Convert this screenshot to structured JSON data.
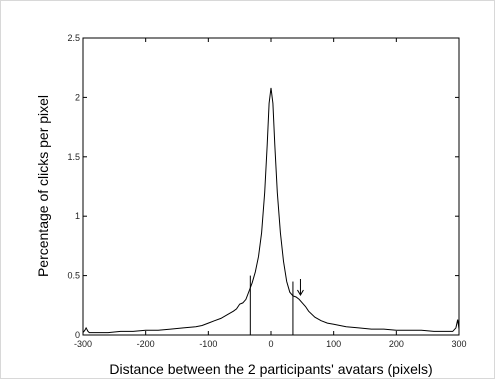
{
  "chart_data": {
    "type": "line",
    "title": "",
    "xlabel": "Distance between the 2 participants' avatars (pixels)",
    "ylabel": "Percentage of clicks per pixel",
    "xlim": [
      -300,
      300
    ],
    "ylim": [
      0,
      2.5
    ],
    "x_ticks": [
      -300,
      -200,
      -100,
      0,
      100,
      200,
      300
    ],
    "x_tick_labels": [
      "-300",
      "-200",
      "-100",
      "0",
      "100",
      "200",
      "300"
    ],
    "y_ticks": [
      0,
      0.5,
      1,
      1.5,
      2,
      2.5
    ],
    "y_tick_labels": [
      "0",
      "0.5",
      "1",
      "1.5",
      "2",
      "2.5"
    ],
    "grid": false,
    "series": [
      {
        "x": [
          -300,
          -297,
          -295,
          -292,
          -290,
          -280,
          -260,
          -240,
          -220,
          -200,
          -180,
          -160,
          -140,
          -120,
          -110,
          -100,
          -90,
          -80,
          -70,
          -60,
          -55,
          -50,
          -45,
          -40,
          -35,
          -30,
          -25,
          -20,
          -15,
          -10,
          -6,
          -3,
          0,
          3,
          6,
          10,
          15,
          20,
          25,
          30,
          35,
          40,
          45,
          50,
          55,
          60,
          70,
          80,
          90,
          100,
          110,
          120,
          140,
          160,
          180,
          200,
          220,
          240,
          260,
          280,
          290,
          295,
          298,
          300
        ],
        "y": [
          0.02,
          0.04,
          0.06,
          0.03,
          0.02,
          0.02,
          0.02,
          0.03,
          0.03,
          0.04,
          0.04,
          0.05,
          0.06,
          0.07,
          0.08,
          0.1,
          0.12,
          0.14,
          0.17,
          0.2,
          0.22,
          0.26,
          0.27,
          0.3,
          0.37,
          0.44,
          0.53,
          0.66,
          0.86,
          1.2,
          1.6,
          1.95,
          2.08,
          1.95,
          1.6,
          1.2,
          0.86,
          0.62,
          0.45,
          0.36,
          0.33,
          0.32,
          0.3,
          0.27,
          0.24,
          0.2,
          0.15,
          0.12,
          0.1,
          0.09,
          0.08,
          0.07,
          0.06,
          0.05,
          0.05,
          0.04,
          0.04,
          0.04,
          0.03,
          0.03,
          0.03,
          0.06,
          0.13,
          0.05
        ]
      }
    ],
    "annotations": {
      "vertical_markers_x": [
        -33,
        35
      ],
      "arrow_x": 47,
      "arrow_head_y": 0.32
    }
  }
}
